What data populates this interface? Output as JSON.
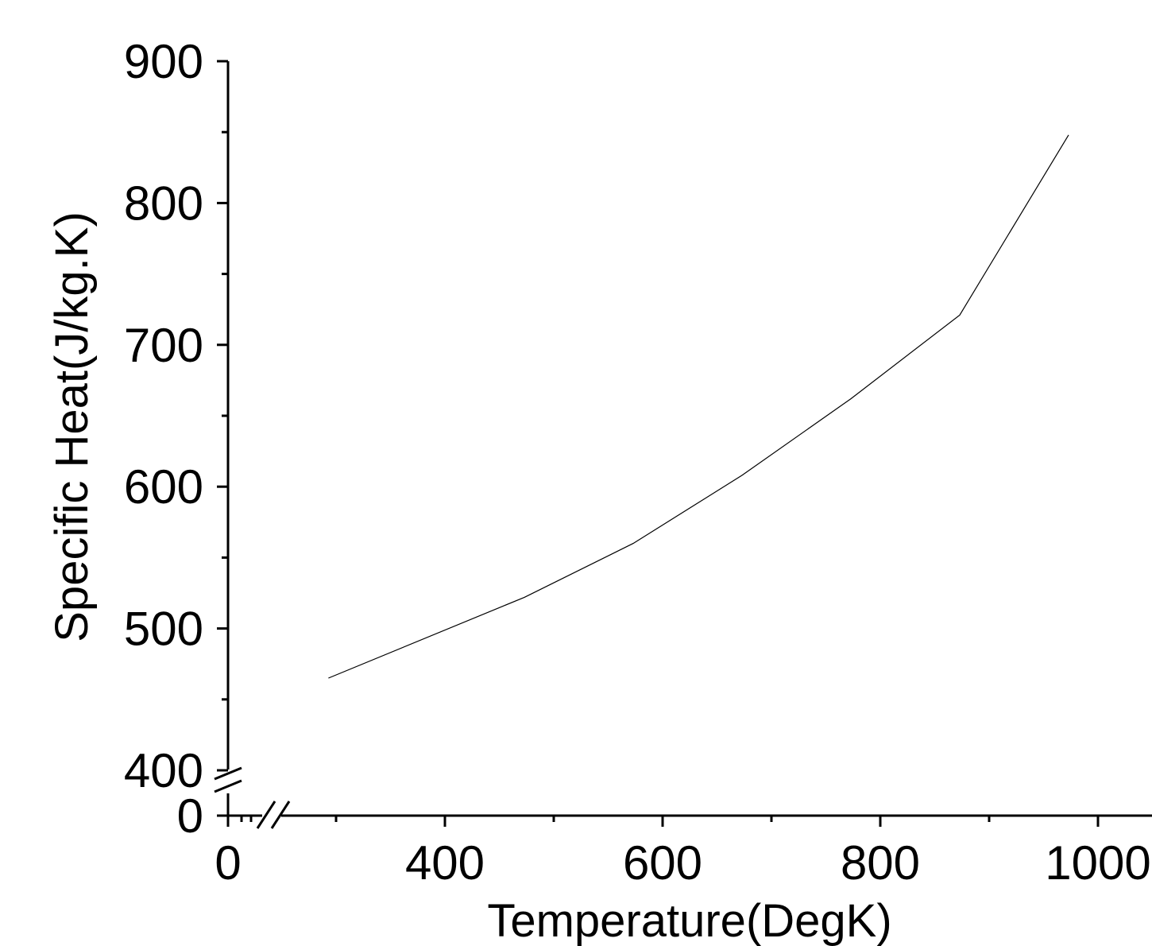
{
  "chart_data": {
    "type": "line",
    "xlabel": "Temperature(DegK)",
    "ylabel": "Specific Heat(J/kg.K)",
    "x_ticks": [
      "0",
      "400",
      "600",
      "800",
      "1000"
    ],
    "y_ticks": [
      "0",
      "400",
      "500",
      "600",
      "700",
      "800",
      "900"
    ],
    "xlim": [
      300,
      1050
    ],
    "ylim": [
      400,
      900
    ],
    "axis_breaks": {
      "x": "0 to 300",
      "y": "0 to 400"
    },
    "grid": false,
    "legend": "none",
    "series": [
      {
        "x": [
          293,
          473,
          573,
          673,
          773,
          873,
          973
        ],
        "y": [
          465,
          522,
          560,
          608,
          662,
          721,
          848
        ]
      }
    ],
    "line_color": "#000000"
  }
}
